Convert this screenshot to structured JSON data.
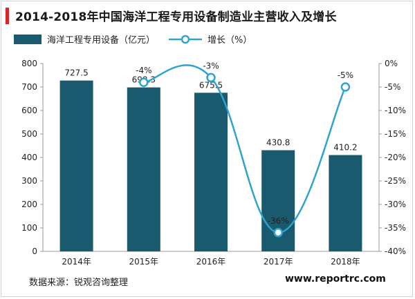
{
  "title": "2014-2018年中国海洋工程专用设备制造业主营收入及增长",
  "source": "数据来源：锐观咨询整理",
  "watermark": "www.reportrc.com",
  "colors": {
    "bar": "#1a5a6e",
    "line": "#2ea3d0",
    "accent": "#d9252b"
  },
  "chart_data": {
    "type": "bar",
    "categories": [
      "2014年",
      "2015年",
      "2016年",
      "2017年",
      "2018年"
    ],
    "series": [
      {
        "name": "海洋工程专用设备（亿元）",
        "type": "bar",
        "axis": "left",
        "values": [
          727.5,
          698.3,
          675.5,
          430.8,
          410.2
        ],
        "labels": [
          "727.5",
          "698.3",
          "675.5",
          "430.8",
          "410.2"
        ]
      },
      {
        "name": "增长（%）",
        "type": "line",
        "axis": "right",
        "values": [
          null,
          -4,
          -3,
          -36,
          -5
        ],
        "labels": [
          "",
          "-4%",
          "-3%",
          "-36%",
          "-5%"
        ]
      }
    ],
    "y_left": {
      "min": 0,
      "max": 800,
      "ticks": [
        "0",
        "100",
        "200",
        "300",
        "400",
        "500",
        "600",
        "700",
        "800"
      ]
    },
    "y_right": {
      "min": -40,
      "max": 0,
      "ticks": [
        "0%",
        "-5%",
        "-10%",
        "-15%",
        "-20%",
        "-25%",
        "-30%",
        "-35%",
        "-40%"
      ]
    },
    "legend": "top-left",
    "grid": false
  }
}
